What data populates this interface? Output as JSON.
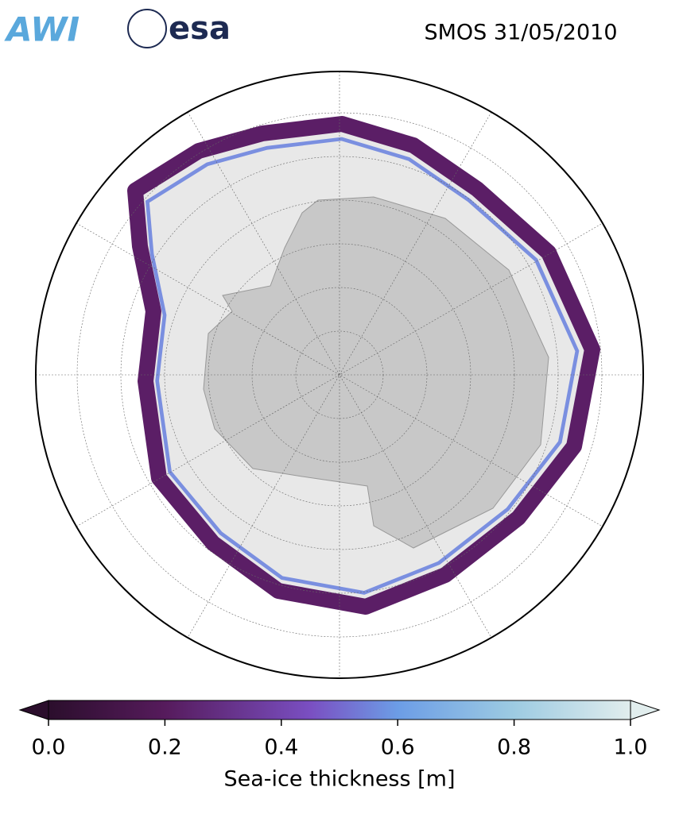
{
  "header": {
    "logos": [
      "AWI",
      "esa"
    ],
    "title": "SMOS 31/05/2010"
  },
  "colorbar": {
    "label": "Sea-ice thickness [m]",
    "clim": [
      0,
      1
    ],
    "ticks": [
      {
        "value": 0,
        "label": "0.0"
      },
      {
        "value": 0.2,
        "label": "0.2"
      },
      {
        "value": 0.4,
        "label": "0.4"
      },
      {
        "value": 0.6,
        "label": "0.6"
      },
      {
        "value": 0.8,
        "label": "0.8"
      },
      {
        "value": 1,
        "label": "1.0"
      }
    ]
  }
}
